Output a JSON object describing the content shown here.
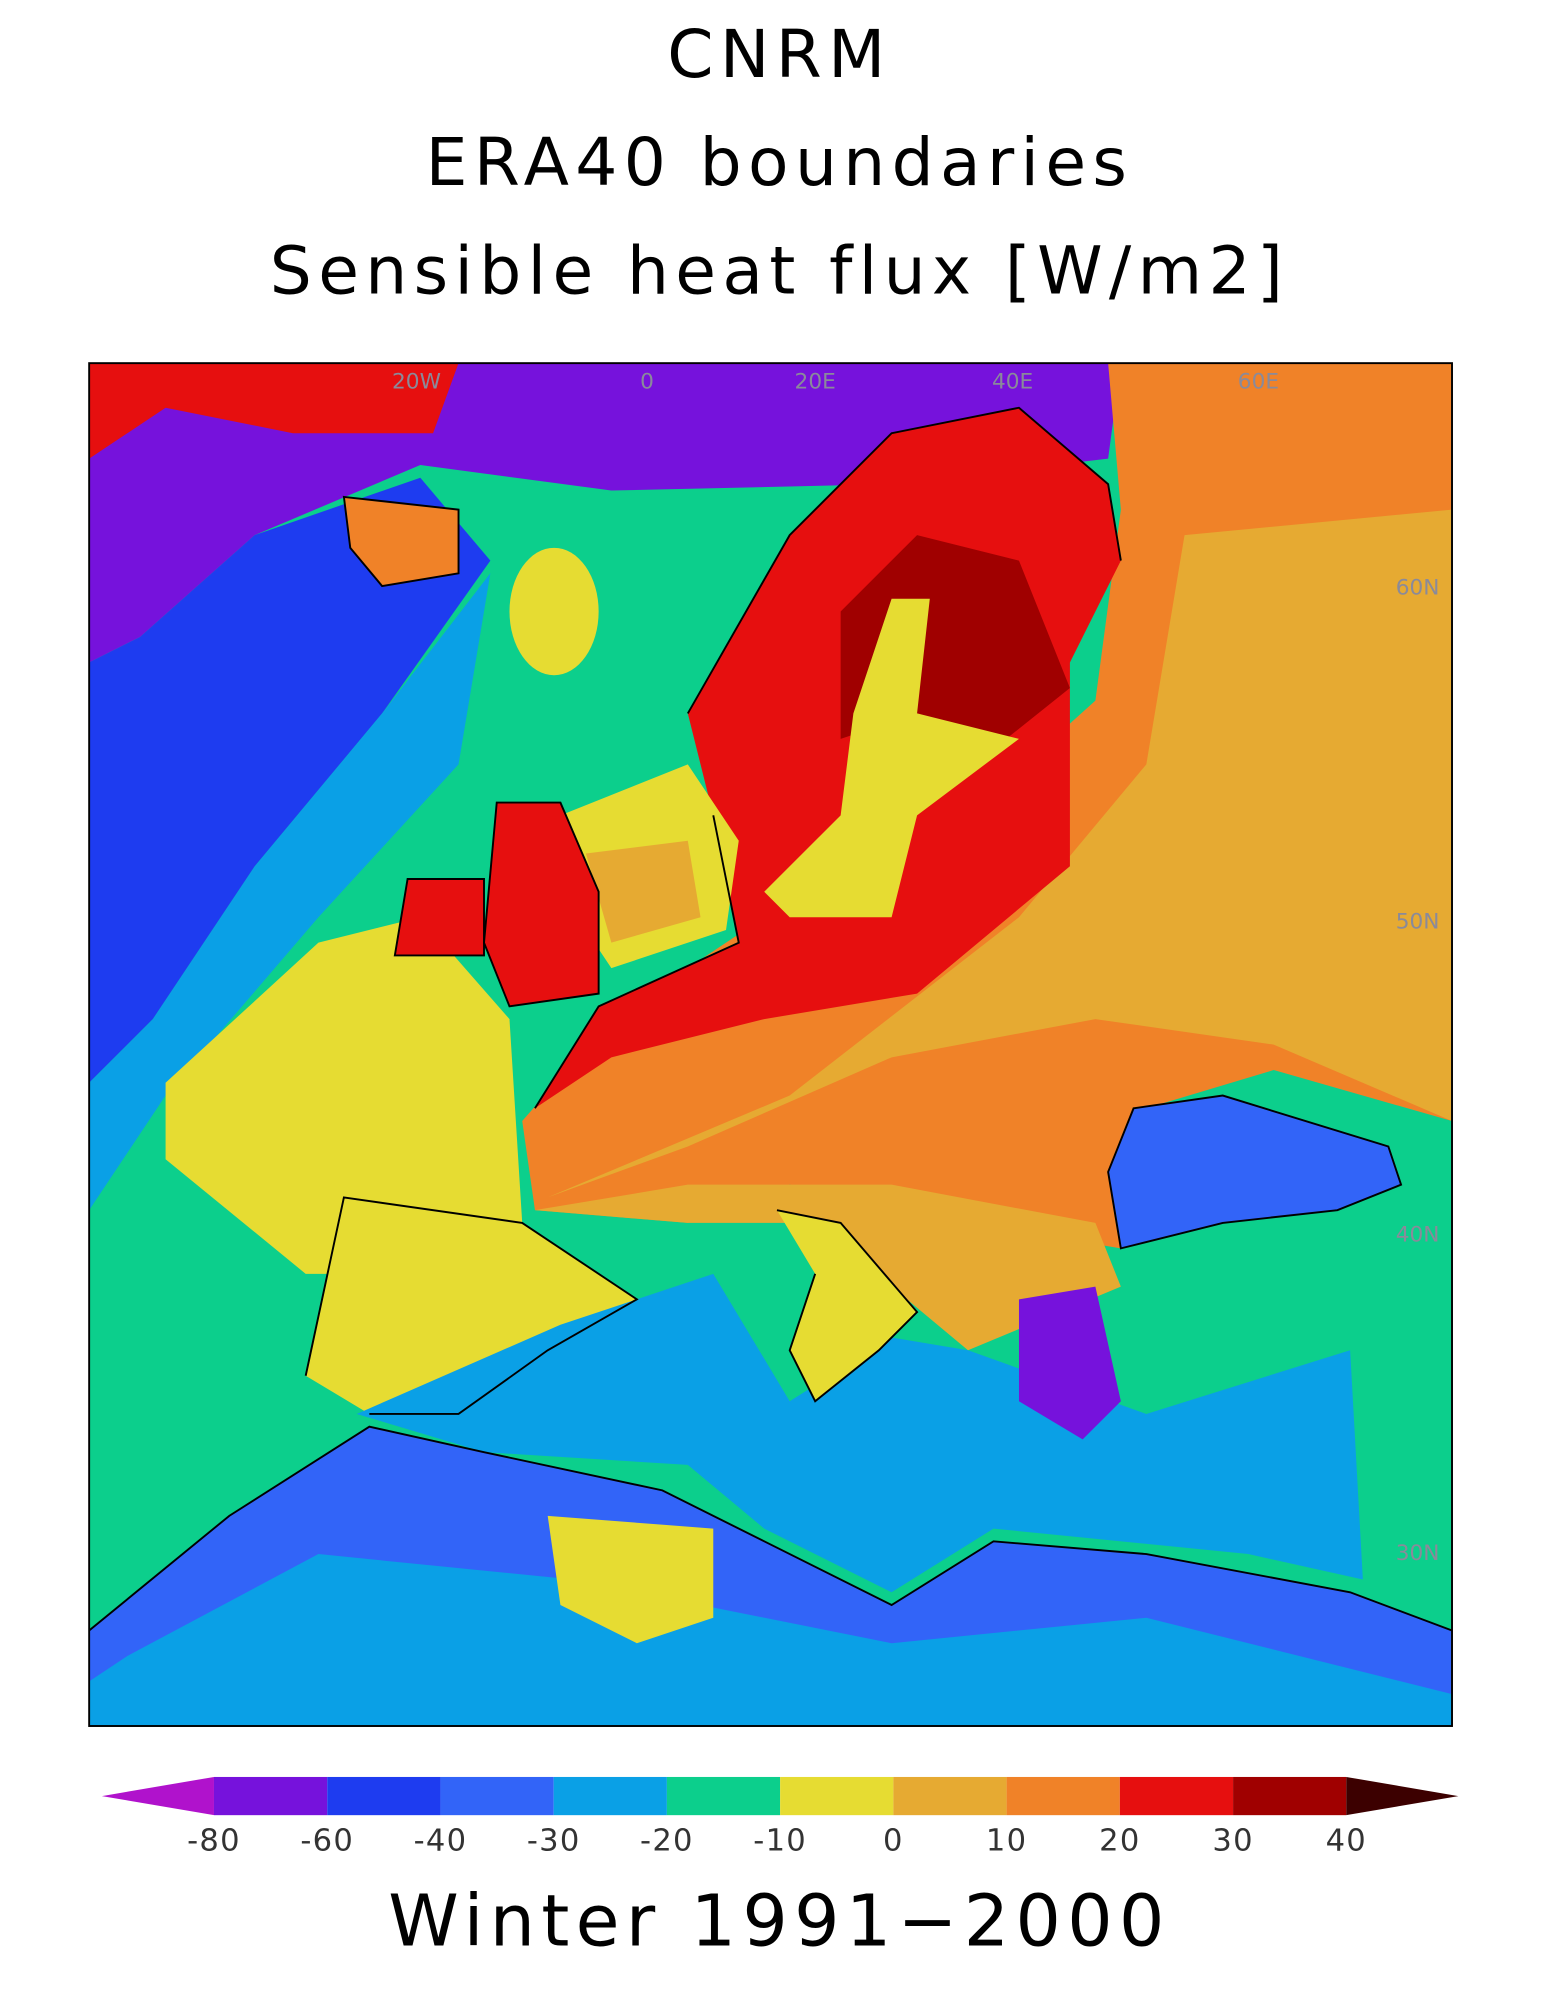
{
  "header": {
    "titles": [
      "CNRM",
      "ERA40 boundaries",
      "Sensible heat flux [W/m2]"
    ]
  },
  "map": {
    "graticule_labels": [
      "20W",
      "0",
      "20E",
      "40E",
      "60E",
      "60N",
      "50N",
      "40N",
      "30N"
    ]
  },
  "colorbar": {
    "ticks": [
      -80,
      -60,
      -40,
      -30,
      -20,
      -10,
      0,
      10,
      20,
      30,
      40
    ],
    "under_color": "#b012cc",
    "colors": [
      "#7612dc",
      "#1e3cf0",
      "#3264f8",
      "#0aa0e6",
      "#0ccf8c",
      "#e6dc32",
      "#e6aa32",
      "#f08228",
      "#e60f0f",
      "#a00000"
    ],
    "over_color": "#3c0000"
  },
  "footer": "Winter 1991−2000"
}
